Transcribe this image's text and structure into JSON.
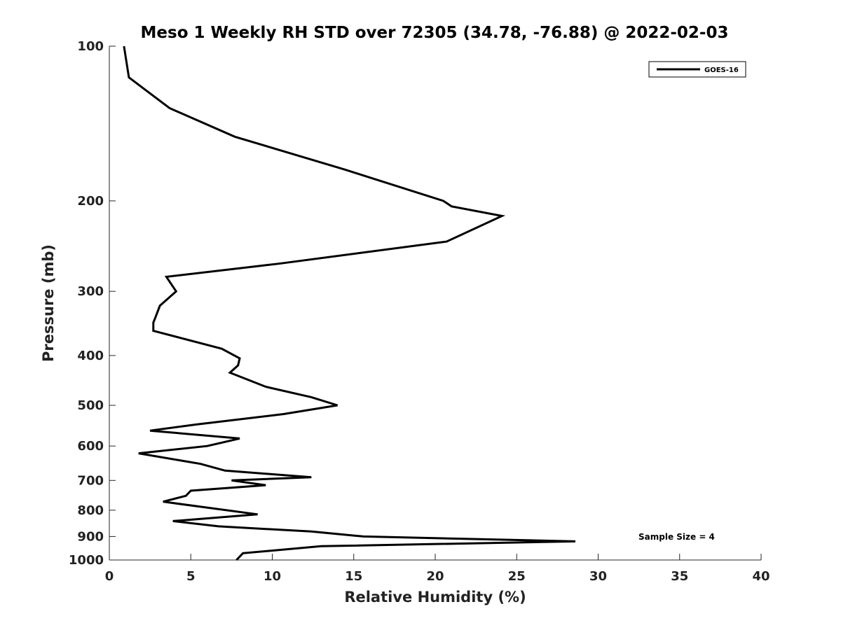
{
  "chart_data": {
    "type": "line",
    "title": "Meso 1 Weekly RH STD over 72305 (34.78, -76.88) @ 2022-02-03",
    "xlabel": "Relative Humidity (%)",
    "ylabel": "Pressure (mb)",
    "xlim": [
      0,
      40
    ],
    "ylim": [
      1000,
      100
    ],
    "yscale": "log",
    "xticks": [
      0,
      5,
      10,
      15,
      20,
      25,
      30,
      35,
      40
    ],
    "yticks": [
      100,
      200,
      300,
      400,
      500,
      600,
      700,
      800,
      900,
      1000
    ],
    "grid": false,
    "legend": {
      "position": "top-right",
      "entries": [
        "GOES-16"
      ]
    },
    "annotations": [
      "Sample Size = 4"
    ],
    "series": [
      {
        "name": "GOES-16",
        "color": "#000000",
        "x": [
          0.9,
          1.2,
          3.7,
          7.7,
          14.5,
          20.5,
          21.0,
          24.1,
          20.7,
          10.4,
          3.5,
          4.1,
          3.1,
          2.8,
          2.7,
          2.7,
          6.9,
          8.0,
          7.9,
          7.4,
          9.6,
          12.4,
          14.0,
          10.7,
          5.3,
          2.5,
          8.0,
          6.0,
          1.8,
          5.6,
          7.1,
          12.4,
          7.5,
          9.6,
          5.0,
          4.7,
          3.3,
          9.1,
          3.9,
          6.7,
          12.4,
          15.6,
          28.6,
          13.0,
          8.2,
          7.8
        ],
        "y": [
          100,
          115,
          132,
          150,
          174,
          200,
          205,
          214,
          240,
          265,
          281,
          300,
          320,
          339,
          345,
          358,
          388,
          405,
          418,
          432,
          460,
          482,
          500,
          520,
          545,
          560,
          580,
          600,
          620,
          650,
          670,
          690,
          700,
          715,
          733,
          750,
          770,
          815,
          840,
          860,
          880,
          900,
          920,
          940,
          970,
          1000
        ]
      }
    ]
  }
}
